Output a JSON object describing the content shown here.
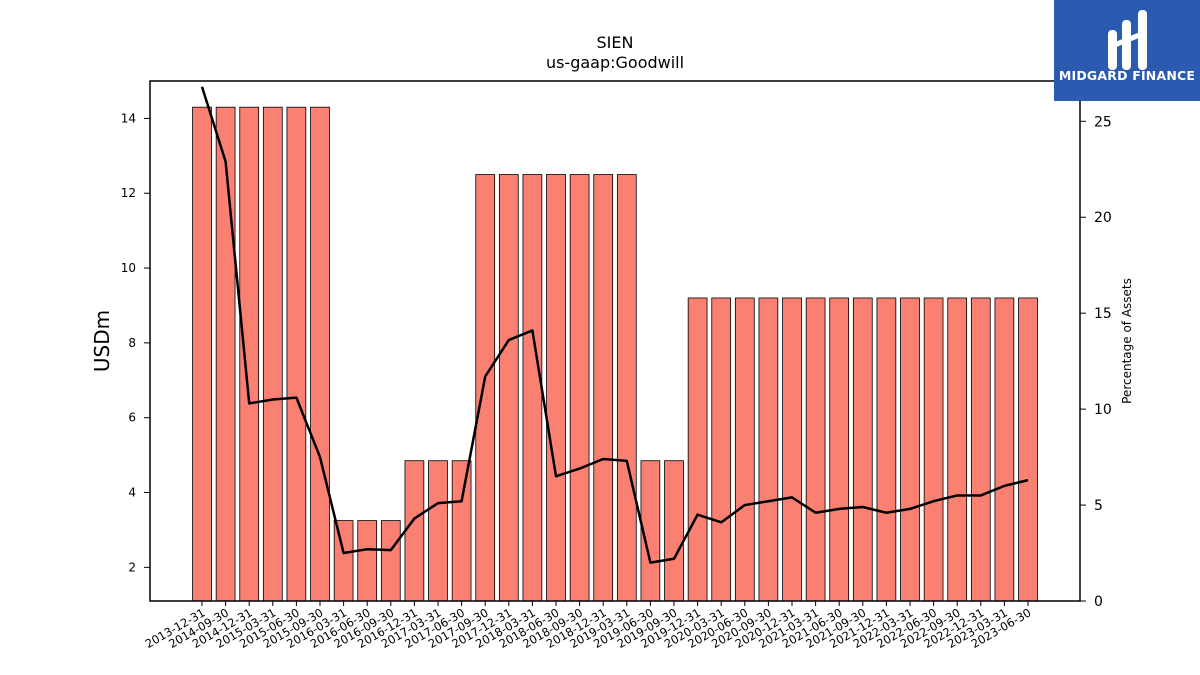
{
  "brand": {
    "name": "MIDGARD FINANCE",
    "logo_icon": "midgard-finance-logo-icon",
    "background_color": "#2a5bb0"
  },
  "chart_data": {
    "type": "bar",
    "title": "SIEN",
    "subtitle": "us-gaap:Goodwill",
    "ylabel": "USDm",
    "y2label": "Percentage of Assets",
    "ylim": [
      1.1,
      15.0
    ],
    "y2lim": [
      0,
      27.1
    ],
    "yticks": [
      2,
      4,
      6,
      8,
      10,
      12,
      14
    ],
    "y2ticks": [
      0,
      5,
      10,
      15,
      20,
      25
    ],
    "grid": false,
    "bar_color": "#fa8072",
    "line_color": "#000000",
    "categories": [
      "2013-12-31",
      "2014-09-30",
      "2014-12-31",
      "2015-03-31",
      "2015-06-30",
      "2015-09-30",
      "2016-03-31",
      "2016-06-30",
      "2016-09-30",
      "2016-12-31",
      "2017-03-31",
      "2017-06-30",
      "2017-09-30",
      "2017-12-31",
      "2018-03-31",
      "2018-06-30",
      "2018-09-30",
      "2018-12-31",
      "2019-03-31",
      "2019-06-30",
      "2019-09-30",
      "2019-12-31",
      "2020-03-31",
      "2020-06-30",
      "2020-09-30",
      "2020-12-31",
      "2021-03-31",
      "2021-06-30",
      "2021-09-30",
      "2021-12-31",
      "2022-03-31",
      "2022-06-30",
      "2022-09-30",
      "2022-12-31",
      "2023-03-31",
      "2023-06-30"
    ],
    "series": [
      {
        "type": "bar",
        "axis": "left",
        "values": [
          14.3,
          14.3,
          14.3,
          14.3,
          14.3,
          14.3,
          3.25,
          3.25,
          3.25,
          4.85,
          4.85,
          4.85,
          12.5,
          12.5,
          12.5,
          12.5,
          12.5,
          12.5,
          12.5,
          4.85,
          4.85,
          9.2,
          9.2,
          9.2,
          9.2,
          9.2,
          9.2,
          9.2,
          9.2,
          9.2,
          9.2,
          9.2,
          9.2,
          9.2,
          9.2,
          9.2
        ]
      },
      {
        "type": "line",
        "axis": "right",
        "values": [
          26.8,
          22.9,
          10.3,
          10.5,
          10.6,
          7.5,
          2.5,
          2.7,
          2.65,
          4.3,
          5.1,
          5.2,
          11.7,
          13.6,
          14.1,
          6.5,
          6.9,
          7.4,
          7.3,
          2.0,
          2.2,
          4.5,
          4.1,
          5.0,
          5.2,
          5.4,
          4.6,
          4.8,
          4.9,
          4.6,
          4.8,
          5.2,
          5.5,
          5.5,
          6.0,
          6.3
        ]
      }
    ]
  }
}
